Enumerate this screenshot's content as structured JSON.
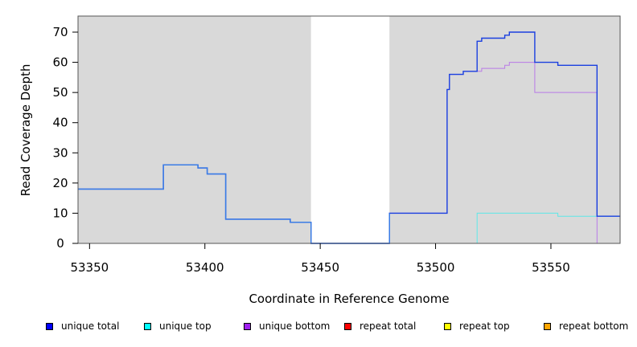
{
  "chart_data": {
    "type": "line",
    "title": "",
    "xlabel": "Coordinate in Reference Genome",
    "ylabel": "Read Coverage Depth",
    "xlim": [
      53345,
      53580
    ],
    "ylim": [
      0,
      75
    ],
    "x_ticks": [
      53350,
      53400,
      53450,
      53500,
      53550
    ],
    "y_ticks": [
      0,
      10,
      20,
      30,
      40,
      50,
      60,
      70
    ],
    "step": true,
    "shaded_regions": [
      {
        "start": 53345,
        "end": 53446,
        "color": "#d9d9d9"
      },
      {
        "start": 53480,
        "end": 53580,
        "color": "#d9d9d9"
      }
    ],
    "series": [
      {
        "name": "unique total",
        "color": "#0000ff",
        "points": [
          [
            53345,
            18
          ],
          [
            53382,
            18
          ],
          [
            53382,
            26
          ],
          [
            53397,
            26
          ],
          [
            53397,
            25
          ],
          [
            53401,
            25
          ],
          [
            53401,
            23
          ],
          [
            53409,
            23
          ],
          [
            53409,
            8
          ],
          [
            53437,
            8
          ],
          [
            53437,
            7
          ],
          [
            53446,
            7
          ],
          [
            53446,
            0
          ],
          [
            53480,
            0
          ],
          [
            53480,
            10
          ],
          [
            53505,
            10
          ],
          [
            53505,
            51
          ],
          [
            53506,
            51
          ],
          [
            53506,
            56
          ],
          [
            53512,
            56
          ],
          [
            53512,
            57
          ],
          [
            53518,
            57
          ],
          [
            53518,
            67
          ],
          [
            53520,
            67
          ],
          [
            53520,
            68
          ],
          [
            53530,
            68
          ],
          [
            53530,
            69
          ],
          [
            53532,
            69
          ],
          [
            53532,
            70
          ],
          [
            53543,
            70
          ],
          [
            53543,
            60
          ],
          [
            53553,
            60
          ],
          [
            53553,
            59
          ],
          [
            53570,
            59
          ],
          [
            53570,
            9
          ],
          [
            53580,
            9
          ]
        ]
      },
      {
        "name": "unique top",
        "color": "#00ffff",
        "points": [
          [
            53345,
            0
          ],
          [
            53518,
            0
          ],
          [
            53518,
            10
          ],
          [
            53553,
            10
          ],
          [
            53553,
            9
          ],
          [
            53580,
            9
          ]
        ]
      },
      {
        "name": "unique bottom",
        "color": "#a020f0",
        "points": [
          [
            53345,
            18
          ],
          [
            53382,
            18
          ],
          [
            53382,
            26
          ],
          [
            53397,
            26
          ],
          [
            53397,
            25
          ],
          [
            53401,
            25
          ],
          [
            53401,
            23
          ],
          [
            53409,
            23
          ],
          [
            53409,
            8
          ],
          [
            53437,
            8
          ],
          [
            53437,
            7
          ],
          [
            53446,
            7
          ],
          [
            53446,
            0
          ],
          [
            53480,
            0
          ],
          [
            53480,
            10
          ],
          [
            53505,
            10
          ],
          [
            53505,
            51
          ],
          [
            53506,
            51
          ],
          [
            53506,
            56
          ],
          [
            53512,
            56
          ],
          [
            53512,
            57
          ],
          [
            53520,
            57
          ],
          [
            53520,
            58
          ],
          [
            53530,
            58
          ],
          [
            53530,
            59
          ],
          [
            53532,
            59
          ],
          [
            53532,
            60
          ],
          [
            53543,
            60
          ],
          [
            53543,
            50
          ],
          [
            53570,
            50
          ],
          [
            53570,
            0
          ],
          [
            53580,
            0
          ]
        ]
      },
      {
        "name": "repeat total",
        "color": "#ff0000",
        "points": [
          [
            53345,
            0
          ],
          [
            53580,
            0
          ]
        ]
      },
      {
        "name": "repeat top",
        "color": "#ffff00",
        "points": [
          [
            53345,
            0
          ],
          [
            53580,
            0
          ]
        ]
      },
      {
        "name": "repeat bottom",
        "color": "#ffa500",
        "points": [
          [
            53345,
            0
          ],
          [
            53580,
            0
          ]
        ]
      }
    ],
    "legend_position": "bottom"
  },
  "legend": [
    {
      "label": "unique total",
      "color": "#0000ff"
    },
    {
      "label": "unique top",
      "color": "#00ffff"
    },
    {
      "label": "unique bottom",
      "color": "#a020f0"
    },
    {
      "label": "repeat total",
      "color": "#ff0000"
    },
    {
      "label": "repeat top",
      "color": "#ffff00"
    },
    {
      "label": "repeat bottom",
      "color": "#ffa500"
    }
  ]
}
